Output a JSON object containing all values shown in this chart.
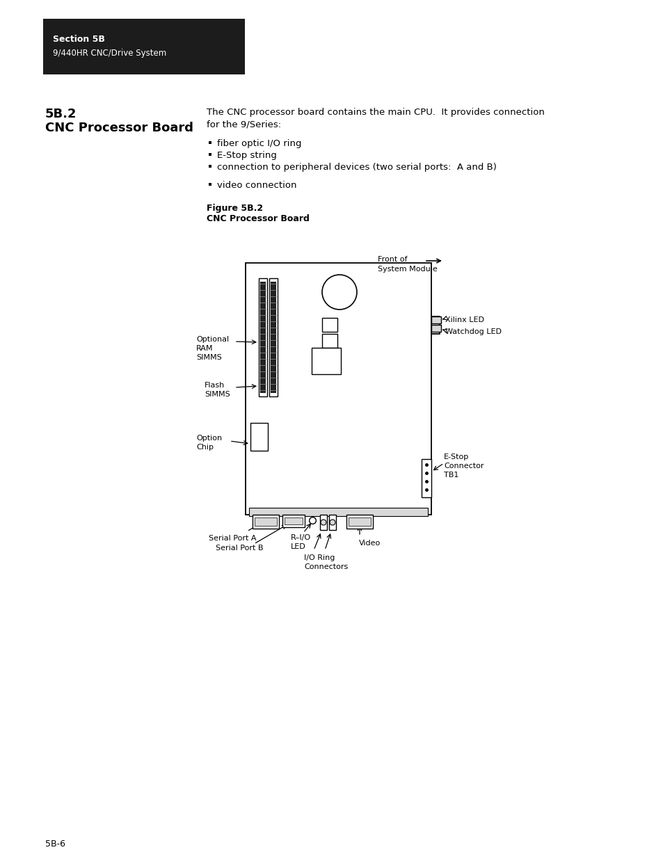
{
  "page_bg": "#ffffff",
  "header_bg": "#1c1c1c",
  "header_text1": "Section 5B",
  "header_text2": "9/440HR CNC/Drive System",
  "section_title1": "5B.2",
  "section_title2": "CNC Processor Board",
  "body_text1": "The CNC processor board contains the main CPU.  It provides connection",
  "body_text2": "for the 9/Series:",
  "bullets": [
    "fiber optic I/O ring",
    "E-Stop string",
    "connection to peripheral devices (two serial ports:  A and B)",
    "video connection"
  ],
  "fig_label1": "Figure 5B.2",
  "fig_label2": "CNC Processor Board",
  "page_num": "5B-6",
  "text_color": "#000000",
  "line_color": "#000000",
  "fill_light": "#d8d8d8",
  "fill_dark": "#222222"
}
